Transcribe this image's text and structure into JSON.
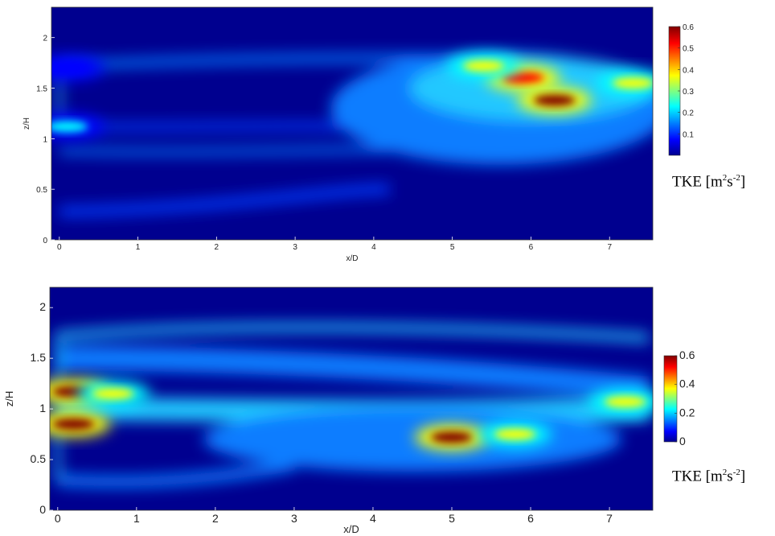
{
  "chart_data": [
    {
      "type": "heatmap",
      "xlabel": "x/D",
      "ylabel": "z/H",
      "xlim": [
        -0.1,
        7.55
      ],
      "ylim": [
        0,
        2.3
      ],
      "x_ticks": [
        "0",
        "1",
        "2",
        "3",
        "4",
        "5",
        "6",
        "7"
      ],
      "y_ticks": [
        "0",
        "0.5",
        "1",
        "1.5",
        "2"
      ],
      "colorbar": {
        "label": "TKE [m²s⁻²]",
        "range": [
          0,
          0.6
        ],
        "ticks": [
          "0.1",
          "0.2",
          "0.3",
          "0.4",
          "0.5",
          "0.6"
        ]
      },
      "colormap": [
        "#00008f",
        "#0000ff",
        "#00ffff",
        "#ffff00",
        "#ff0000",
        "#800000"
      ],
      "hotspots": [
        {
          "x": 5.9,
          "z": 1.6,
          "tke": 0.58
        },
        {
          "x": 6.3,
          "z": 1.38,
          "tke": 0.6
        },
        {
          "x": 5.4,
          "z": 1.72,
          "tke": 0.45
        },
        {
          "x": 7.3,
          "z": 1.55,
          "tke": 0.38
        },
        {
          "x": 0.1,
          "z": 1.12,
          "tke": 0.3
        },
        {
          "x": 0.1,
          "z": 1.7,
          "tke": 0.22
        }
      ]
    },
    {
      "type": "heatmap",
      "xlabel": "x/D",
      "ylabel": "z/H",
      "xlim": [
        -0.1,
        7.55
      ],
      "ylim": [
        0,
        2.2
      ],
      "x_ticks": [
        "0",
        "1",
        "2",
        "3",
        "4",
        "5",
        "6",
        "7"
      ],
      "y_ticks": [
        "0",
        "0.5",
        "1",
        "1.5",
        "2"
      ],
      "colorbar": {
        "label": "TKE [m²s⁻²]",
        "range": [
          0,
          0.6
        ],
        "ticks": [
          "0",
          "0.2",
          "0.4",
          "0.6"
        ]
      },
      "colormap": [
        "#00008f",
        "#0000ff",
        "#00ffff",
        "#ffff00",
        "#ff0000",
        "#800000"
      ],
      "hotspots": [
        {
          "x": 0.2,
          "z": 1.17,
          "tke": 0.6
        },
        {
          "x": 0.2,
          "z": 0.85,
          "tke": 0.6
        },
        {
          "x": 0.7,
          "z": 1.15,
          "tke": 0.45
        },
        {
          "x": 5.0,
          "z": 0.72,
          "tke": 0.6
        },
        {
          "x": 5.8,
          "z": 0.75,
          "tke": 0.5
        },
        {
          "x": 7.2,
          "z": 1.07,
          "tke": 0.38
        }
      ]
    }
  ],
  "labels": {
    "top": {
      "xlabel": "x/D",
      "ylabel": "z/H",
      "tke_main": "TKE [m",
      "tke_sup1": "2",
      "tke_mid": "s",
      "tke_sup2": "-2",
      "tke_end": "]"
    },
    "bottom": {
      "xlabel": "x/D",
      "ylabel": "z/H",
      "tke_main": "TKE [m",
      "tke_sup1": "2",
      "tke_mid": "s",
      "tke_sup2": "-2",
      "tke_end": "]"
    }
  }
}
